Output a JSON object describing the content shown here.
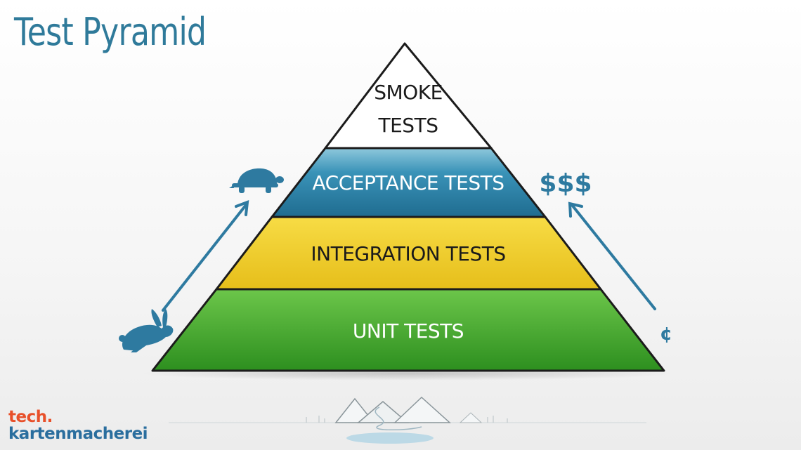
{
  "title": "Test Pyramid",
  "layers": {
    "smoke": {
      "line1": "SMOKE",
      "line2": "TESTS",
      "color": "#ffffff"
    },
    "acceptance": {
      "label": "ACCEPTANCE TESTS",
      "color": "#2f86ad"
    },
    "integration": {
      "label": "INTEGRATION TESTS",
      "color": "#f0cf2a"
    },
    "unit": {
      "label": "UNIT TESTS",
      "color": "#4fb334"
    }
  },
  "cost": {
    "high": "$$$",
    "low": "¢"
  },
  "speed_icons": {
    "slow": "turtle-icon",
    "fast": "rabbit-icon"
  },
  "brand": {
    "line1": "tech.",
    "line2": "kartenmacherei"
  },
  "colors": {
    "accent": "#2f7a9a",
    "brand_orange": "#e8502a",
    "brand_blue": "#2a6e9e"
  }
}
